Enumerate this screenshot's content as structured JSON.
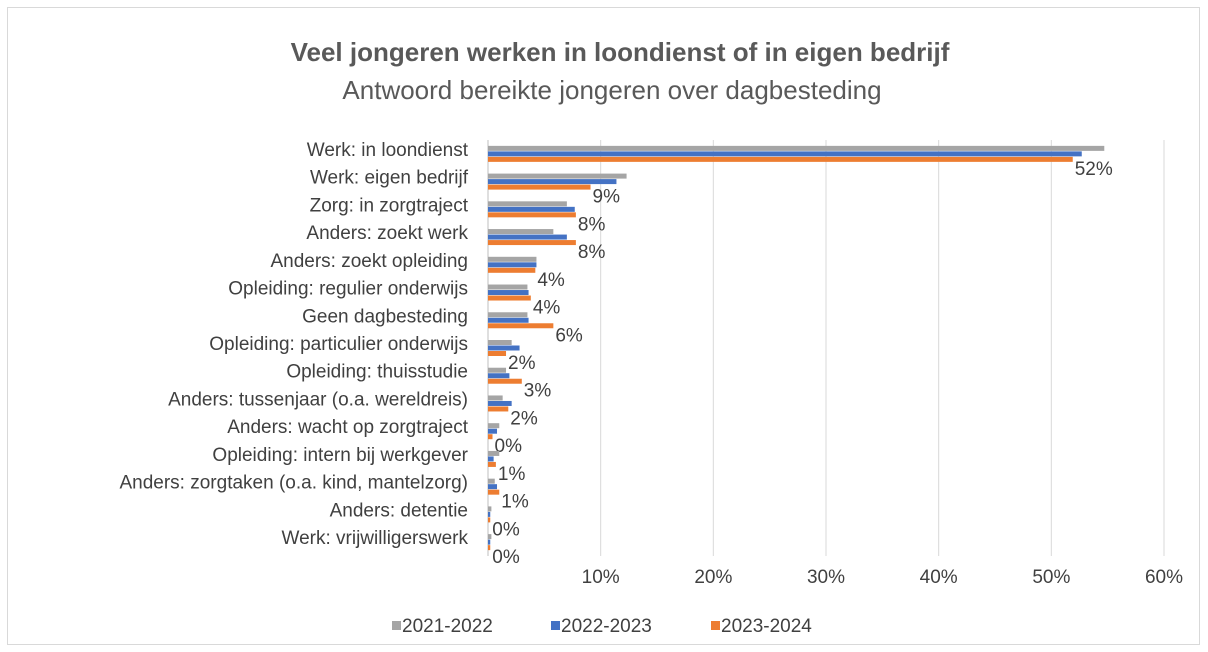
{
  "chart_data": {
    "type": "bar",
    "orientation": "horizontal",
    "title": "Veel jongeren werken in loondienst of in eigen bedrijf",
    "subtitle": "Antwoord bereikte jongeren over dagbesteding",
    "categories": [
      "Werk: in loondienst",
      "Werk: eigen bedrijf",
      "Zorg: in zorgtraject",
      "Anders: zoekt werk",
      "Anders: zoekt opleiding",
      "Opleiding: regulier onderwijs",
      "Geen dagbesteding",
      "Opleiding: particulier onderwijs",
      "Opleiding: thuisstudie",
      "Anders: tussenjaar (o.a. wereldreis)",
      "Anders: wacht op zorgtraject",
      "Opleiding: intern bij werkgever",
      "Anders: zorgtaken (o.a. kind, mantelzorg)",
      "Anders: detentie",
      "Werk: vrijwilligerswerk"
    ],
    "series": [
      {
        "name": "2021-2022",
        "color": "#a5a5a5",
        "values": [
          54.7,
          12.3,
          7.0,
          5.8,
          4.3,
          3.5,
          3.5,
          2.1,
          1.6,
          1.3,
          1.0,
          1.0,
          0.6,
          0.3,
          0.3
        ]
      },
      {
        "name": "2022-2023",
        "color": "#4472c4",
        "values": [
          52.7,
          11.4,
          7.7,
          7.0,
          4.3,
          3.6,
          3.6,
          2.8,
          1.9,
          2.1,
          0.8,
          0.5,
          0.8,
          0.2,
          0.2
        ]
      },
      {
        "name": "2023-2024",
        "color": "#ed7d31",
        "values": [
          51.9,
          9.1,
          7.8,
          7.8,
          4.2,
          3.8,
          5.8,
          1.6,
          3.0,
          1.8,
          0.4,
          0.7,
          1.0,
          0.2,
          0.2
        ],
        "value_labels": [
          "52%",
          "9%",
          "8%",
          "8%",
          "4%",
          "4%",
          "6%",
          "2%",
          "3%",
          "2%",
          "0%",
          "1%",
          "1%",
          "0%",
          "0%"
        ]
      }
    ],
    "xlim": [
      0,
      60
    ],
    "xticks": [
      {
        "value": 10,
        "label": "10%"
      },
      {
        "value": 20,
        "label": "20%"
      },
      {
        "value": 30,
        "label": "30%"
      },
      {
        "value": 40,
        "label": "40%"
      },
      {
        "value": 50,
        "label": "50%"
      },
      {
        "value": 60,
        "label": "60%"
      }
    ],
    "grid": true,
    "legend": "bottom"
  }
}
